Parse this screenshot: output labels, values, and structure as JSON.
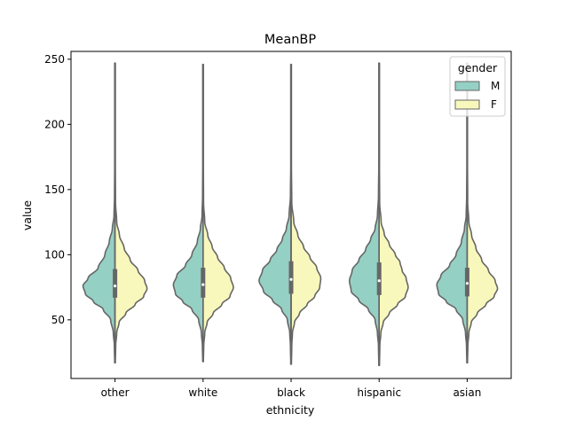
{
  "chart_data": {
    "type": "violin",
    "title": "MeanBP",
    "xlabel": "ethnicity",
    "ylabel": "value",
    "ylim": [
      5,
      256
    ],
    "yticks": [
      50,
      100,
      150,
      200,
      250
    ],
    "categories": [
      "other",
      "white",
      "black",
      "hispanic",
      "asian"
    ],
    "split": true,
    "legend": {
      "title": "gender",
      "position": "top-right",
      "entries": [
        {
          "label": "M",
          "color": "#95d0c4"
        },
        {
          "label": "F",
          "color": "#f8f8bc"
        }
      ]
    },
    "series": [
      {
        "name": "M",
        "color": "#95d0c4",
        "violins": [
          {
            "min": 17,
            "max": 247,
            "q1": 67,
            "median": 76,
            "q3": 89,
            "profile": [
              [
                17,
                0.01
              ],
              [
                30,
                0.02
              ],
              [
                40,
                0.05
              ],
              [
                50,
                0.13
              ],
              [
                58,
                0.35
              ],
              [
                64,
                0.64
              ],
              [
                70,
                0.88
              ],
              [
                76,
                0.95
              ],
              [
                82,
                0.8
              ],
              [
                90,
                0.5
              ],
              [
                100,
                0.3
              ],
              [
                110,
                0.17
              ],
              [
                120,
                0.08
              ],
              [
                130,
                0.03
              ],
              [
                145,
                0.015
              ],
              [
                170,
                0.01
              ],
              [
                247,
                0.01
              ]
            ]
          },
          {
            "min": 18,
            "max": 246,
            "q1": 67,
            "median": 77,
            "q3": 90,
            "profile": [
              [
                18,
                0.01
              ],
              [
                30,
                0.02
              ],
              [
                40,
                0.05
              ],
              [
                50,
                0.13
              ],
              [
                58,
                0.33
              ],
              [
                64,
                0.6
              ],
              [
                70,
                0.82
              ],
              [
                77,
                0.88
              ],
              [
                84,
                0.78
              ],
              [
                92,
                0.52
              ],
              [
                100,
                0.33
              ],
              [
                110,
                0.17
              ],
              [
                120,
                0.08
              ],
              [
                130,
                0.03
              ],
              [
                145,
                0.015
              ],
              [
                170,
                0.01
              ],
              [
                246,
                0.01
              ]
            ]
          },
          {
            "min": 16,
            "max": 246,
            "q1": 70,
            "median": 81,
            "q3": 95,
            "profile": [
              [
                16,
                0.01
              ],
              [
                30,
                0.02
              ],
              [
                40,
                0.04
              ],
              [
                50,
                0.11
              ],
              [
                58,
                0.28
              ],
              [
                65,
                0.55
              ],
              [
                72,
                0.82
              ],
              [
                80,
                0.95
              ],
              [
                88,
                0.85
              ],
              [
                96,
                0.62
              ],
              [
                104,
                0.42
              ],
              [
                112,
                0.26
              ],
              [
                120,
                0.14
              ],
              [
                130,
                0.06
              ],
              [
                145,
                0.02
              ],
              [
                170,
                0.01
              ],
              [
                246,
                0.01
              ]
            ]
          },
          {
            "min": 15,
            "max": 247,
            "q1": 69,
            "median": 80,
            "q3": 94,
            "profile": [
              [
                15,
                0.01
              ],
              [
                30,
                0.02
              ],
              [
                40,
                0.05
              ],
              [
                50,
                0.12
              ],
              [
                58,
                0.32
              ],
              [
                65,
                0.6
              ],
              [
                72,
                0.83
              ],
              [
                80,
                0.88
              ],
              [
                88,
                0.8
              ],
              [
                96,
                0.6
              ],
              [
                104,
                0.4
              ],
              [
                112,
                0.25
              ],
              [
                120,
                0.12
              ],
              [
                130,
                0.05
              ],
              [
                145,
                0.02
              ],
              [
                170,
                0.01
              ],
              [
                247,
                0.01
              ]
            ]
          },
          {
            "min": 17,
            "max": 247,
            "q1": 68,
            "median": 78,
            "q3": 90,
            "profile": [
              [
                17,
                0.01
              ],
              [
                30,
                0.02
              ],
              [
                40,
                0.05
              ],
              [
                50,
                0.13
              ],
              [
                58,
                0.33
              ],
              [
                64,
                0.62
              ],
              [
                70,
                0.85
              ],
              [
                77,
                0.9
              ],
              [
                84,
                0.78
              ],
              [
                92,
                0.52
              ],
              [
                100,
                0.33
              ],
              [
                110,
                0.17
              ],
              [
                120,
                0.08
              ],
              [
                130,
                0.03
              ],
              [
                145,
                0.015
              ],
              [
                170,
                0.01
              ],
              [
                247,
                0.01
              ]
            ]
          }
        ]
      },
      {
        "name": "F",
        "color": "#f8f8bc",
        "violins": [
          {
            "min": 17,
            "max": 247,
            "q1": 67,
            "median": 76,
            "q3": 89,
            "profile": [
              [
                17,
                0.01
              ],
              [
                30,
                0.02
              ],
              [
                40,
                0.05
              ],
              [
                48,
                0.12
              ],
              [
                55,
                0.32
              ],
              [
                62,
                0.6
              ],
              [
                68,
                0.85
              ],
              [
                74,
                0.95
              ],
              [
                80,
                0.88
              ],
              [
                88,
                0.68
              ],
              [
                96,
                0.45
              ],
              [
                105,
                0.27
              ],
              [
                115,
                0.13
              ],
              [
                125,
                0.05
              ],
              [
                140,
                0.015
              ],
              [
                170,
                0.01
              ],
              [
                247,
                0.01
              ]
            ]
          },
          {
            "min": 18,
            "max": 246,
            "q1": 67,
            "median": 77,
            "q3": 90,
            "profile": [
              [
                18,
                0.01
              ],
              [
                30,
                0.02
              ],
              [
                40,
                0.05
              ],
              [
                48,
                0.12
              ],
              [
                55,
                0.3
              ],
              [
                62,
                0.56
              ],
              [
                68,
                0.8
              ],
              [
                75,
                0.9
              ],
              [
                82,
                0.82
              ],
              [
                90,
                0.63
              ],
              [
                98,
                0.43
              ],
              [
                106,
                0.27
              ],
              [
                115,
                0.14
              ],
              [
                125,
                0.05
              ],
              [
                140,
                0.015
              ],
              [
                170,
                0.01
              ],
              [
                246,
                0.01
              ]
            ]
          },
          {
            "min": 16,
            "max": 246,
            "q1": 70,
            "median": 81,
            "q3": 95,
            "profile": [
              [
                16,
                0.01
              ],
              [
                30,
                0.02
              ],
              [
                40,
                0.04
              ],
              [
                48,
                0.1
              ],
              [
                55,
                0.25
              ],
              [
                62,
                0.48
              ],
              [
                68,
                0.7
              ],
              [
                75,
                0.85
              ],
              [
                82,
                0.88
              ],
              [
                90,
                0.76
              ],
              [
                98,
                0.56
              ],
              [
                106,
                0.37
              ],
              [
                115,
                0.2
              ],
              [
                125,
                0.08
              ],
              [
                140,
                0.02
              ],
              [
                170,
                0.01
              ],
              [
                246,
                0.01
              ]
            ]
          },
          {
            "min": 15,
            "max": 247,
            "q1": 69,
            "median": 80,
            "q3": 94,
            "profile": [
              [
                15,
                0.01
              ],
              [
                30,
                0.02
              ],
              [
                40,
                0.05
              ],
              [
                48,
                0.12
              ],
              [
                55,
                0.3
              ],
              [
                62,
                0.55
              ],
              [
                68,
                0.78
              ],
              [
                75,
                0.86
              ],
              [
                82,
                0.8
              ],
              [
                88,
                0.68
              ],
              [
                94,
                0.62
              ],
              [
                100,
                0.48
              ],
              [
                108,
                0.3
              ],
              [
                116,
                0.15
              ],
              [
                125,
                0.06
              ],
              [
                140,
                0.015
              ],
              [
                170,
                0.01
              ],
              [
                247,
                0.01
              ]
            ]
          },
          {
            "min": 17,
            "max": 247,
            "q1": 68,
            "median": 78,
            "q3": 90,
            "profile": [
              [
                17,
                0.01
              ],
              [
                30,
                0.02
              ],
              [
                40,
                0.05
              ],
              [
                48,
                0.12
              ],
              [
                55,
                0.3
              ],
              [
                62,
                0.56
              ],
              [
                68,
                0.8
              ],
              [
                74,
                0.9
              ],
              [
                80,
                0.83
              ],
              [
                88,
                0.63
              ],
              [
                96,
                0.43
              ],
              [
                105,
                0.26
              ],
              [
                115,
                0.13
              ],
              [
                125,
                0.05
              ],
              [
                140,
                0.015
              ],
              [
                170,
                0.01
              ],
              [
                247,
                0.01
              ]
            ]
          }
        ]
      }
    ]
  },
  "style": {
    "outline_color": "#666666",
    "box_color": "#666666",
    "median_color": "#ffffff"
  }
}
